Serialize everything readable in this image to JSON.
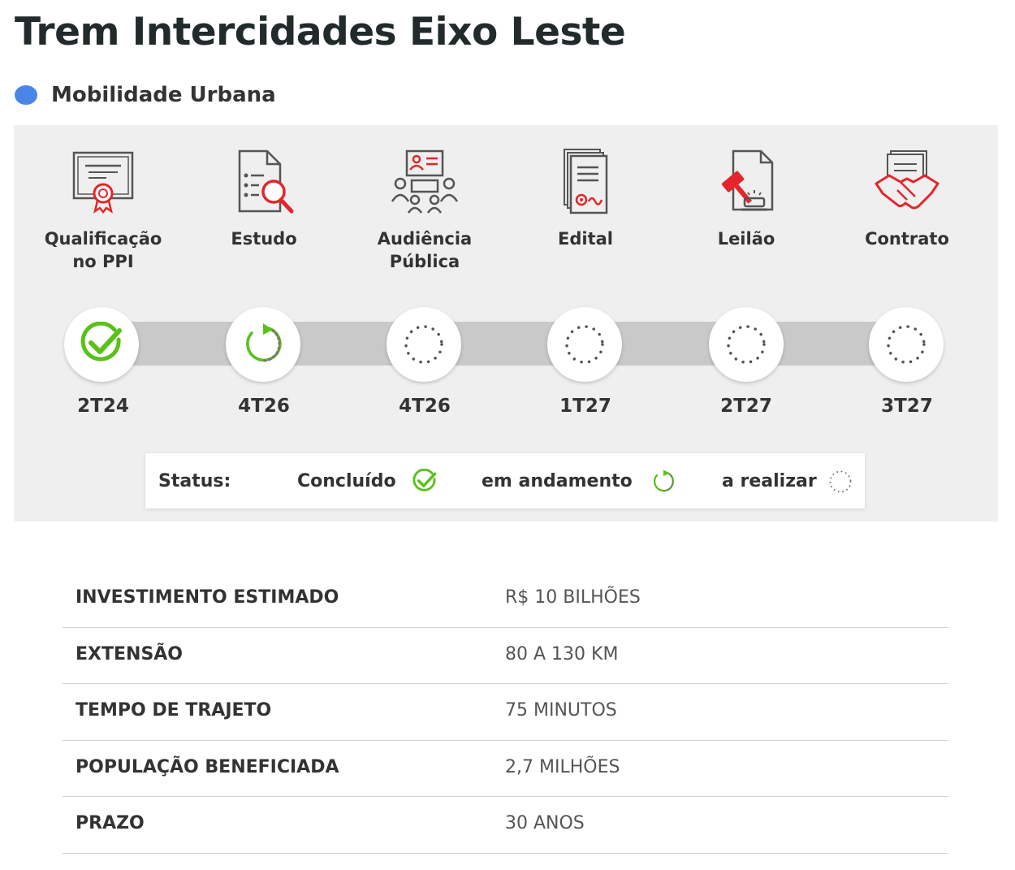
{
  "page": {
    "title": "Trem Intercidades Eixo Leste",
    "category": "Mobilidade Urbana",
    "category_color": "#4a86e8"
  },
  "stages": [
    {
      "name": "Qualificação\nno PPI",
      "icon": "certificate-icon",
      "date": "2T24",
      "status": "concluido"
    },
    {
      "name": "Estudo",
      "icon": "study-document-search-icon",
      "date": "4T26",
      "status": "em_andamento"
    },
    {
      "name": "Audiência\nPública",
      "icon": "public-hearing-icon",
      "date": "4T26",
      "status": "a_realizar"
    },
    {
      "name": "Edital",
      "icon": "notice-document-icon",
      "date": "1T27",
      "status": "a_realizar"
    },
    {
      "name": "Leilão",
      "icon": "auction-gavel-icon",
      "date": "2T27",
      "status": "a_realizar"
    },
    {
      "name": "Contrato",
      "icon": "contract-handshake-icon",
      "date": "3T27",
      "status": "a_realizar"
    }
  ],
  "legend": {
    "title": "Status:",
    "done": "Concluído",
    "in_progress": "em andamento",
    "pending": "a realizar"
  },
  "details": [
    {
      "label": "INVESTIMENTO ESTIMADO",
      "value": "R$ 10 BILHÕES"
    },
    {
      "label": "EXTENSÃO",
      "value": "80 A 130 KM"
    },
    {
      "label": "TEMPO DE TRAJETO",
      "value": "75 MINUTOS"
    },
    {
      "label": "POPULAÇÃO BENEFICIADA",
      "value": "2,7 MILHÕES"
    },
    {
      "label": "PRAZO",
      "value": "30 ANOS"
    }
  ],
  "colors": {
    "icon_gray": "#555555",
    "icon_red": "#e3262b",
    "done_green": "#5ac118",
    "pending_gray": "#777777"
  }
}
